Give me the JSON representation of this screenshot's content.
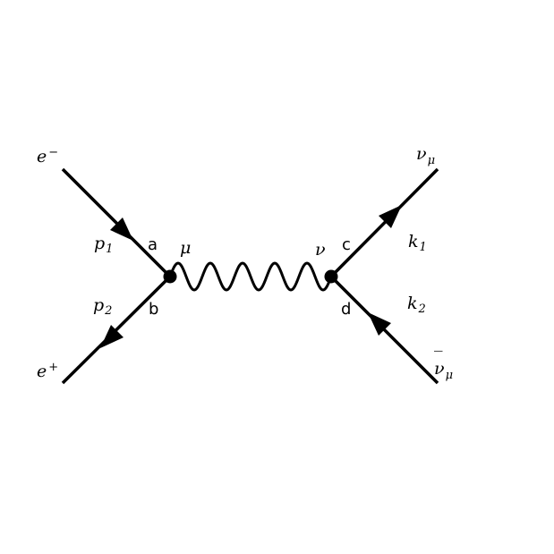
{
  "diagram": {
    "type": "feynman-diagram",
    "colors": {
      "line": "#000000",
      "background": "#ffffff"
    },
    "particles": {
      "incoming_electron": {
        "symbol": "e",
        "sup": "−"
      },
      "incoming_positron": {
        "symbol": "e",
        "sup": "+"
      },
      "outgoing_neutrino": {
        "symbol": "ν",
        "sub": "μ"
      },
      "outgoing_antineutrino": {
        "symbol": "ν",
        "bar": "‾",
        "sub": "μ"
      }
    },
    "momenta": {
      "p1": {
        "symbol": "p",
        "sub": "1"
      },
      "p2": {
        "symbol": "p",
        "sub": "2"
      },
      "k1": {
        "symbol": "k",
        "sub": "1"
      },
      "k2": {
        "symbol": "k",
        "sub": "2"
      }
    },
    "vertex_indices": {
      "left": "μ",
      "right": "ν"
    },
    "leg_labels": {
      "a": "a",
      "b": "b",
      "c": "c",
      "d": "d"
    },
    "propagator": {
      "kind": "photon-wavy",
      "waves": 5
    }
  }
}
